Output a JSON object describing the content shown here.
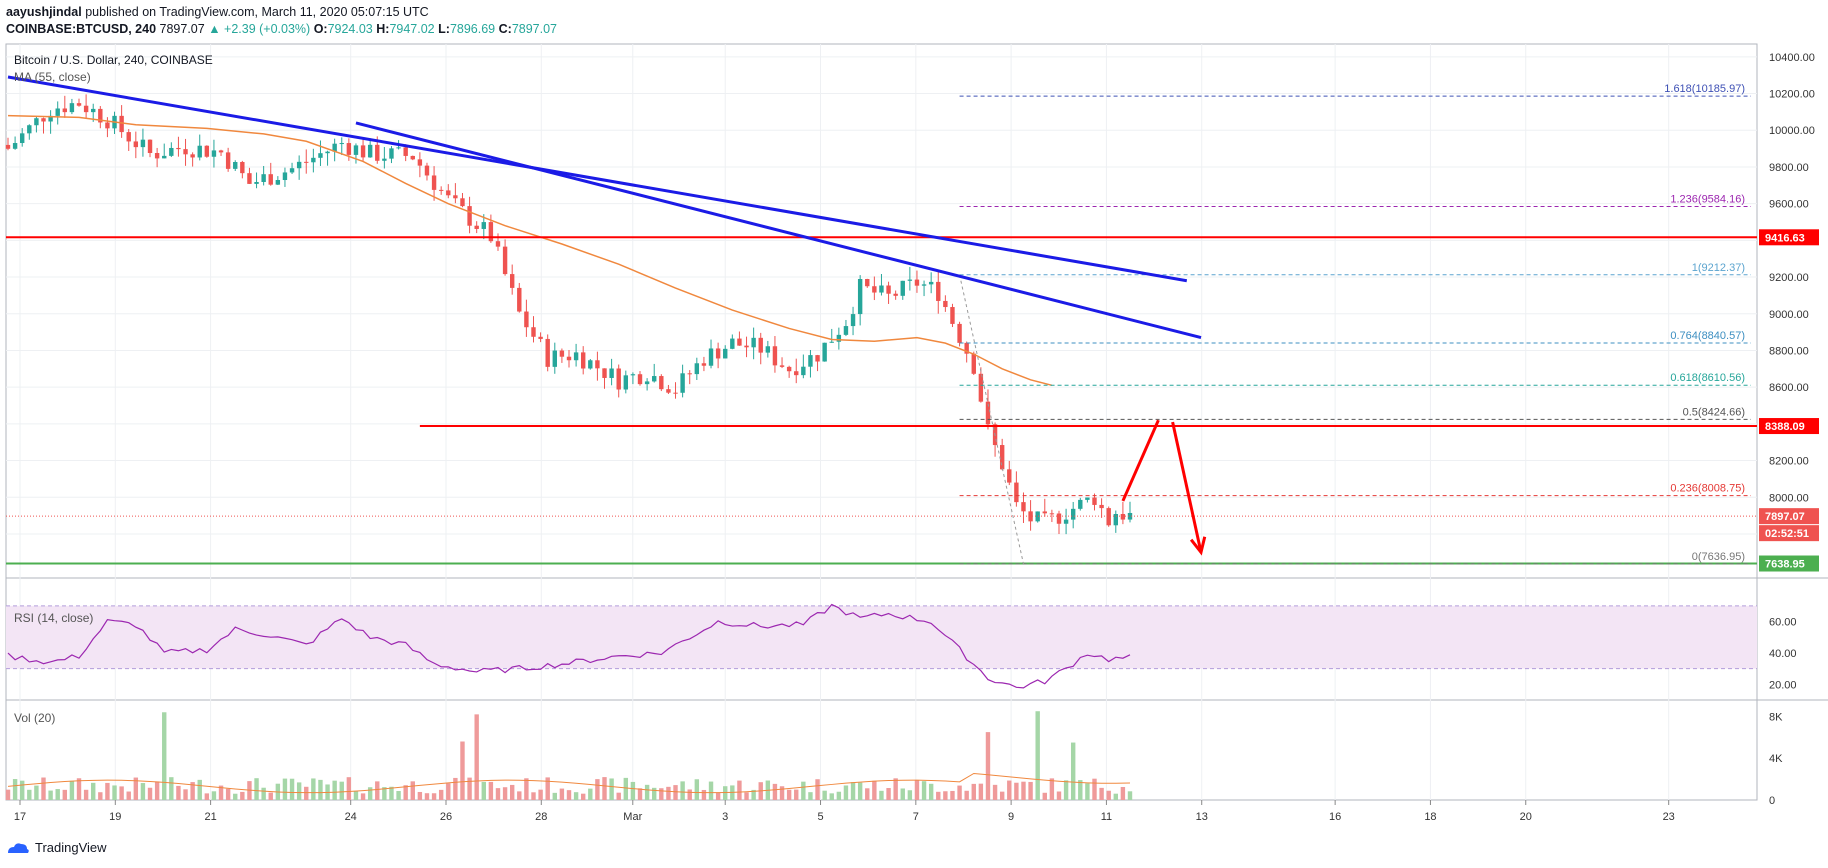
{
  "header": {
    "author": "aayushjindal",
    "published": "published on TradingView.com, March 11, 2020 05:07:15 UTC",
    "symbol": "COINBASE:BTCUSD, 240",
    "last": "7897.07",
    "change": "▲ +2.39 (+0.03%)",
    "o_label": "O:",
    "o_val": "7924.03",
    "h_label": "H:",
    "h_val": "7947.02",
    "l_label": "L:",
    "l_val": "7896.69",
    "c_label": "C:",
    "c_val": "7897.07"
  },
  "legend": {
    "title": "Bitcoin / U.S. Dollar, 240, COINBASE",
    "ma": "MA (55, close)",
    "rsi": "RSI (14, close)",
    "vol": "Vol (20)"
  },
  "footer": {
    "brand": "TradingView"
  },
  "colors": {
    "up": "#26a69a",
    "down": "#ef5350",
    "ma": "#f0883e",
    "trend": "#1b1be6",
    "hline": "#ff0000",
    "support": "#4caf50",
    "rsi": "#9c27b0",
    "rsi_fill": "#f3e5f5"
  },
  "chart_data": [
    {
      "type": "candlestick",
      "title": "Bitcoin / U.S. Dollar, 240, COINBASE",
      "ylim": [
        7560,
        10470
      ],
      "yticks": [
        10400,
        10200,
        10000,
        9800,
        9600,
        9400,
        9200,
        9000,
        8800,
        8600,
        8400,
        8200,
        8000,
        7800
      ],
      "xticks": [
        "17",
        "19",
        "21",
        "24",
        "26",
        "28",
        "Mar",
        "3",
        "5",
        "7",
        "9",
        "11",
        "13",
        "16",
        "18",
        "20",
        "23"
      ],
      "close_path": [
        [
          0,
          9900
        ],
        [
          6,
          10120
        ],
        [
          10,
          10150
        ],
        [
          14,
          10060
        ],
        [
          20,
          9870
        ],
        [
          25,
          9910
        ],
        [
          30,
          9880
        ],
        [
          34,
          9710
        ],
        [
          40,
          9790
        ],
        [
          47,
          9930
        ],
        [
          51,
          9870
        ],
        [
          57,
          9860
        ],
        [
          62,
          9620
        ],
        [
          68,
          9420
        ],
        [
          72,
          9000
        ],
        [
          76,
          8760
        ],
        [
          80,
          8780
        ],
        [
          86,
          8640
        ],
        [
          90,
          8680
        ],
        [
          94,
          8590
        ],
        [
          98,
          8760
        ],
        [
          102,
          8840
        ],
        [
          106,
          8810
        ],
        [
          110,
          8700
        ],
        [
          114,
          8780
        ],
        [
          118,
          8960
        ],
        [
          120,
          9140
        ],
        [
          124,
          9090
        ],
        [
          128,
          9170
        ],
        [
          131,
          9120
        ],
        [
          134,
          8880
        ],
        [
          136,
          8720
        ],
        [
          138,
          8360
        ],
        [
          140,
          8180
        ],
        [
          142,
          7950
        ],
        [
          144,
          7880
        ],
        [
          146,
          7860
        ],
        [
          148,
          7900
        ],
        [
          151,
          7960
        ],
        [
          153,
          8000
        ],
        [
          155,
          7870
        ],
        [
          156,
          7920
        ],
        [
          158,
          7897
        ]
      ],
      "ma55": [
        [
          0,
          10080
        ],
        [
          10,
          10070
        ],
        [
          18,
          10030
        ],
        [
          28,
          10010
        ],
        [
          36,
          9980
        ],
        [
          42,
          9940
        ],
        [
          50,
          9830
        ],
        [
          56,
          9710
        ],
        [
          62,
          9600
        ],
        [
          70,
          9480
        ],
        [
          78,
          9380
        ],
        [
          86,
          9270
        ],
        [
          94,
          9140
        ],
        [
          102,
          9020
        ],
        [
          110,
          8920
        ],
        [
          116,
          8860
        ],
        [
          122,
          8850
        ],
        [
          128,
          8870
        ],
        [
          132,
          8840
        ],
        [
          136,
          8780
        ],
        [
          140,
          8700
        ],
        [
          144,
          8640
        ],
        [
          147,
          8610
        ]
      ],
      "resistance_lines": [
        {
          "label": "9416.63",
          "value": 9416.63
        },
        {
          "label": "8388.09",
          "value": 8388.09
        }
      ],
      "support_line": {
        "label": "7638.95",
        "value": 7638.95
      },
      "current_price": {
        "label": "7897.07",
        "value": 7897.07,
        "countdown": "02:52:51"
      },
      "trendlines": [
        {
          "from": [
            0,
            10290
          ],
          "to": [
            166,
            9180
          ]
        },
        {
          "from": [
            49,
            10040
          ],
          "to": [
            168,
            8870
          ]
        }
      ],
      "fibonacci": [
        {
          "label": "1.618(10185.97)",
          "value": 10185.97,
          "color": "#3f51b5"
        },
        {
          "label": "1.236(9584.16)",
          "value": 9584.16,
          "color": "#9c27b0"
        },
        {
          "label": "1(9212.37)",
          "value": 9212.37,
          "color": "#5ba4cf"
        },
        {
          "label": "0.764(8840.57)",
          "value": 8840.57,
          "color": "#3d8fc1"
        },
        {
          "label": "0.618(8610.56)",
          "value": 8610.56,
          "color": "#26a69a"
        },
        {
          "label": "0.5(8424.66)",
          "value": 8424.66,
          "color": "#555555"
        },
        {
          "label": "0.236(8008.75)",
          "value": 8008.75,
          "color": "#e53935"
        },
        {
          "label": "0(7636.95)",
          "value": 7636.95,
          "color": "#777777"
        }
      ],
      "projection_arrows": [
        {
          "from": [
            157,
            7980
          ],
          "to": [
            162,
            8420
          ]
        },
        {
          "from": [
            164,
            8410
          ],
          "to": [
            168,
            7700
          ]
        }
      ]
    },
    {
      "type": "line",
      "title": "RSI (14, close)",
      "ylim": [
        10,
        75
      ],
      "yticks": [
        60,
        40,
        20
      ],
      "band": [
        30,
        70
      ],
      "values": [
        [
          0,
          38
        ],
        [
          6,
          34
        ],
        [
          10,
          38
        ],
        [
          14,
          60
        ],
        [
          18,
          58
        ],
        [
          22,
          40
        ],
        [
          28,
          42
        ],
        [
          32,
          55
        ],
        [
          36,
          52
        ],
        [
          42,
          45
        ],
        [
          47,
          62
        ],
        [
          51,
          50
        ],
        [
          56,
          45
        ],
        [
          60,
          33
        ],
        [
          66,
          28
        ],
        [
          72,
          30
        ],
        [
          78,
          33
        ],
        [
          86,
          38
        ],
        [
          92,
          40
        ],
        [
          96,
          50
        ],
        [
          100,
          60
        ],
        [
          106,
          57
        ],
        [
          112,
          58
        ],
        [
          116,
          70
        ],
        [
          120,
          62
        ],
        [
          124,
          65
        ],
        [
          130,
          60
        ],
        [
          134,
          42
        ],
        [
          138,
          24
        ],
        [
          142,
          18
        ],
        [
          146,
          22
        ],
        [
          149,
          30
        ],
        [
          152,
          40
        ],
        [
          155,
          36
        ],
        [
          158,
          37
        ]
      ]
    },
    {
      "type": "bar",
      "title": "Vol (20)",
      "ylim": [
        0,
        9
      ],
      "yticks": [
        "8K",
        "4K",
        "0"
      ],
      "spikes": [
        [
          22,
          8.4
        ],
        [
          66,
          8.2
        ],
        [
          64,
          5.6
        ],
        [
          138,
          6.5
        ],
        [
          145,
          8.5
        ],
        [
          150,
          5.5
        ]
      ]
    }
  ]
}
